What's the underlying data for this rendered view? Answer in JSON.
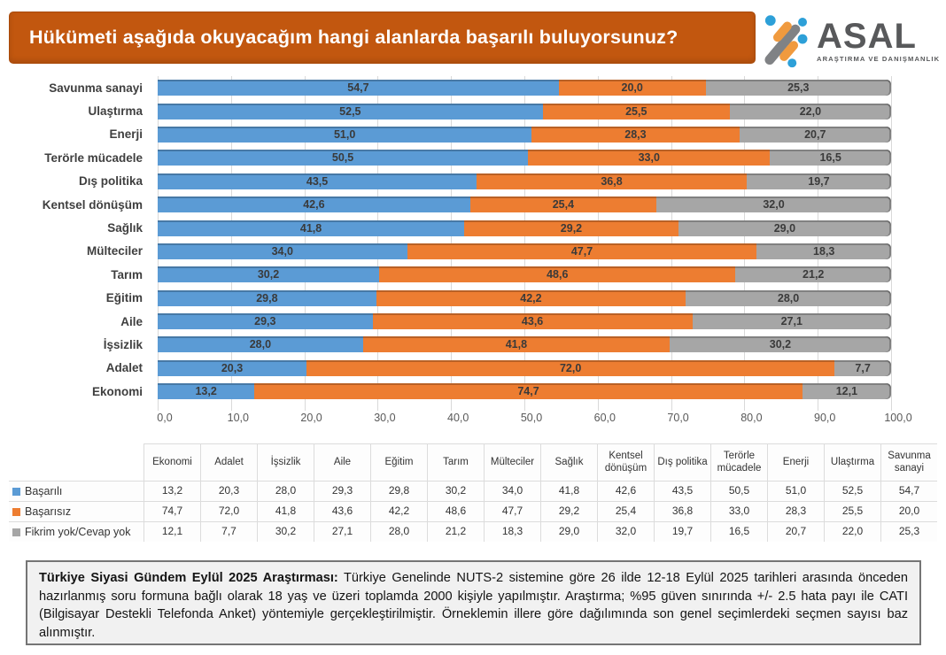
{
  "title_bar": {
    "text": "Hükümeti aşağıda okuyacağım hangi alanlarda başarılı buluyorsunuz?"
  },
  "logo": {
    "name": "ASAL",
    "subtitle": "ARAŞTIRMA VE DANIŞMANLIK"
  },
  "colors": {
    "basarili_blue": "#5b9bd5",
    "basarisiz_orange": "#ed7d31",
    "fikrim_yok_gray": "#a6a6a6",
    "title_bg_orange": "#c2570f",
    "logo_blue": "#2da0d8",
    "logo_orange": "#f09a3e",
    "logo_gray": "#808285"
  },
  "chart_data": {
    "type": "bar",
    "orientation": "horizontal-stacked",
    "title": "Hükümeti aşağıda okuyacağım hangi alanlarda başarılı buluyorsunuz?",
    "categories": [
      "Savunma sanayi",
      "Ulaştırma",
      "Enerji",
      "Terörle mücadele",
      "Dış politika",
      "Kentsel dönüşüm",
      "Sağlık",
      "Mülteciler",
      "Tarım",
      "Eğitim",
      "Aile",
      "İşsizlik",
      "Adalet",
      "Ekonomi"
    ],
    "series": [
      {
        "name": "Başarılı",
        "color": "#5b9bd5",
        "values": [
          54.7,
          52.5,
          51.0,
          50.5,
          43.5,
          42.6,
          41.8,
          34.0,
          30.2,
          29.8,
          29.3,
          28.0,
          20.3,
          13.2
        ]
      },
      {
        "name": "Başarısız",
        "color": "#ed7d31",
        "values": [
          20.0,
          25.5,
          28.3,
          33.0,
          36.8,
          25.4,
          29.2,
          47.7,
          48.6,
          42.2,
          43.6,
          41.8,
          72.0,
          74.7
        ]
      },
      {
        "name": "Fikrim yok/Cevap yok",
        "color": "#a6a6a6",
        "values": [
          25.3,
          22.0,
          20.7,
          16.5,
          19.7,
          32.0,
          29.0,
          18.3,
          21.2,
          28.0,
          27.1,
          30.2,
          7.7,
          12.1
        ]
      }
    ],
    "xlim": [
      0,
      100
    ],
    "x_ticks": [
      "0,0",
      "10,0",
      "20,0",
      "30,0",
      "40,0",
      "50,0",
      "60,0",
      "70,0",
      "80,0",
      "90,0",
      "100,0"
    ],
    "grid": true,
    "legend_position": "table-left-bottom",
    "decimal_separator": ","
  },
  "data_table": {
    "columns": [
      "Ekonomi",
      "Adalet",
      "İşsizlik",
      "Aile",
      "Eğitim",
      "Tarım",
      "Mülteciler",
      "Sağlık",
      "Kentsel dönüşüm",
      "Dış politika",
      "Terörle mücadele",
      "Enerji",
      "Ulaştırma",
      "Savunma sanayi"
    ],
    "rows": [
      {
        "label": "Başarılı",
        "color": "#5b9bd5",
        "values": [
          "13,2",
          "20,3",
          "28,0",
          "29,3",
          "29,8",
          "30,2",
          "34,0",
          "41,8",
          "42,6",
          "43,5",
          "50,5",
          "51,0",
          "52,5",
          "54,7"
        ]
      },
      {
        "label": "Başarısız",
        "color": "#ed7d31",
        "values": [
          "74,7",
          "72,0",
          "41,8",
          "43,6",
          "42,2",
          "48,6",
          "47,7",
          "29,2",
          "25,4",
          "36,8",
          "33,0",
          "28,3",
          "25,5",
          "20,0"
        ]
      },
      {
        "label": "Fikrim yok/Cevap yok",
        "color": "#a6a6a6",
        "values": [
          "12,1",
          "7,7",
          "30,2",
          "27,1",
          "28,0",
          "21,2",
          "18,3",
          "29,0",
          "32,0",
          "19,7",
          "16,5",
          "20,7",
          "22,0",
          "25,3"
        ]
      }
    ]
  },
  "footnote": {
    "lead_bold": "Türkiye Siyasi Gündem Eylül 2025 Araştırması:",
    "body": " Türkiye Genelinde NUTS-2 sistemine göre 26 ilde 12-18 Eylül 2025 tarihleri arasında önceden hazırlanmış soru formuna bağlı olarak 18 yaş ve üzeri toplamda 2000 kişiyle yapılmıştır. Araştırma; %95 güven sınırında +/- 2.5 hata payı ile CATI (Bilgisayar Destekli Telefonda Anket) yöntemiyle gerçekleştirilmiştir. Örneklemin illere göre dağılımında son genel seçimlerdeki seçmen sayısı baz alınmıştır."
  }
}
